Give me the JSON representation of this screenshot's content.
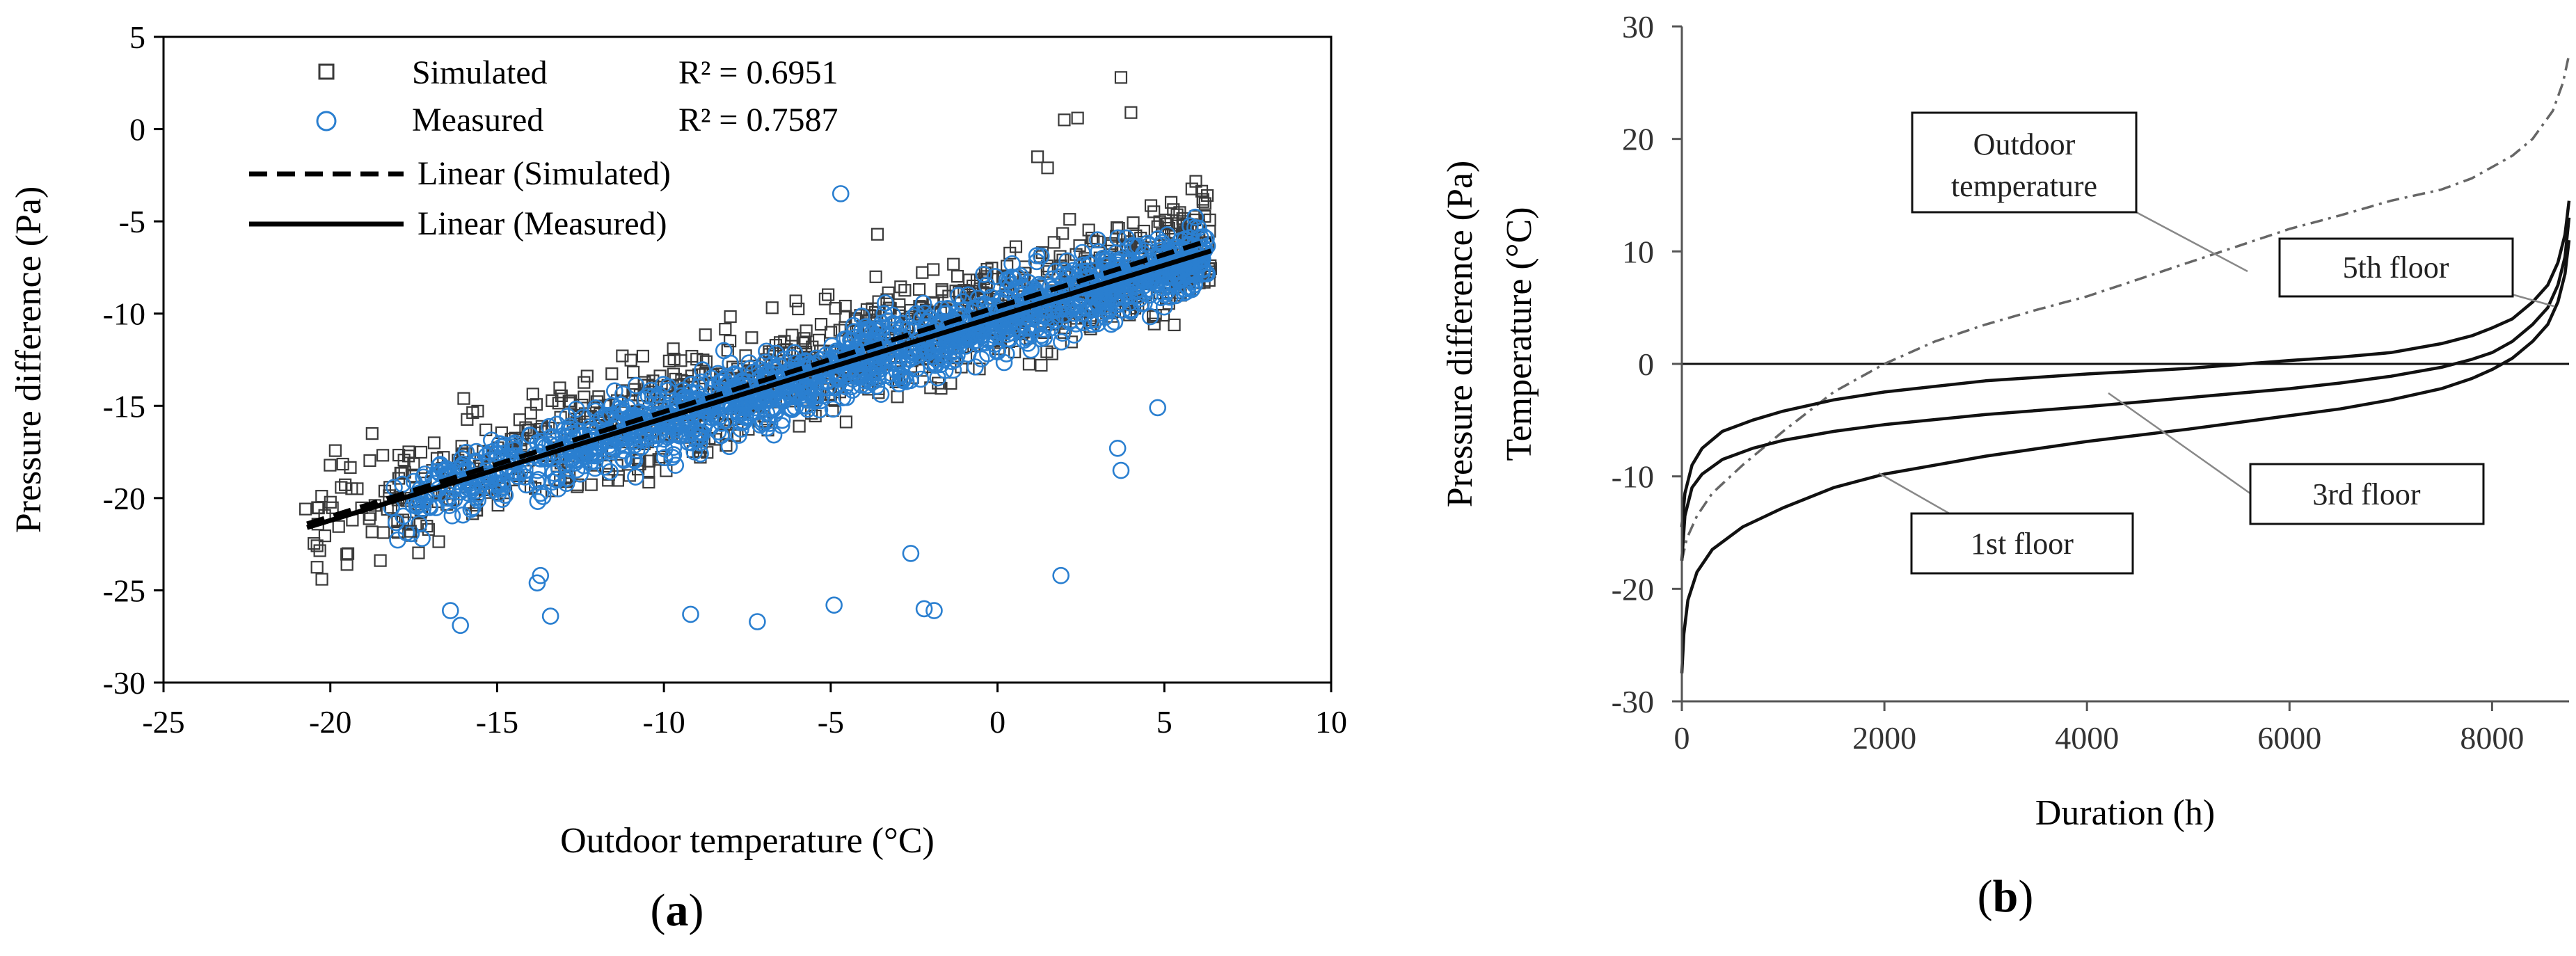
{
  "chart_data": [
    {
      "id": "a",
      "type": "scatter",
      "panel_label_open": "(",
      "panel_label_letter": "a",
      "panel_label_close": ")",
      "xlabel": "Outdoor temperature (°C)",
      "ylabel": "Pressure difference (Pa)",
      "xlim": [
        -25,
        10
      ],
      "ylim": [
        -30,
        5
      ],
      "xticks": [
        -25,
        -20,
        -15,
        -10,
        -5,
        0,
        5,
        10
      ],
      "yticks": [
        5,
        0,
        -5,
        -10,
        -15,
        -20,
        -25,
        -30
      ],
      "grid": false,
      "legend_position": "top-left",
      "series": [
        {
          "name": "Simulated",
          "marker": "square",
          "color": "#3a3a3a",
          "r2_label": "R² = 0.6951",
          "cloud": {
            "x_range": [
              -20.8,
              6.4
            ],
            "trend_slope": 0.565,
            "trend_intercept": -9.7,
            "spread": 2.2
          }
        },
        {
          "name": "Measured",
          "marker": "circle",
          "color": "#2a7fd0",
          "r2_label": "R² = 0.7587",
          "cloud": {
            "x_range": [
              -18.2,
              6.3
            ],
            "trend_slope": 0.555,
            "trend_intercept": -10.3,
            "spread": 1.4
          }
        }
      ],
      "trendlines": [
        {
          "name": "Linear (Simulated)",
          "style": "dashed",
          "x": [
            -20.7,
            6.4
          ],
          "y": [
            -21.4,
            -6.0
          ]
        },
        {
          "name": "Linear (Measured)",
          "style": "solid",
          "x": [
            -20.7,
            6.4
          ],
          "y": [
            -21.6,
            -6.6
          ]
        }
      ],
      "outliers": {
        "Simulated": [
          [
            3.7,
            2.8
          ],
          [
            4.0,
            0.9
          ],
          [
            2.0,
            0.5
          ],
          [
            2.4,
            0.6
          ],
          [
            1.2,
            -1.5
          ],
          [
            1.5,
            -2.1
          ],
          [
            -3.6,
            -5.7
          ],
          [
            -16.0,
            -14.6
          ],
          [
            -19.5,
            -23.6
          ],
          [
            -17.6,
            -21.8
          ]
        ],
        "Measured": [
          [
            -4.7,
            -3.5
          ],
          [
            -16.1,
            -26.9
          ],
          [
            -16.4,
            -26.1
          ],
          [
            -13.4,
            -26.4
          ],
          [
            -9.2,
            -26.3
          ],
          [
            -7.2,
            -26.7
          ],
          [
            -4.9,
            -25.8
          ],
          [
            -2.2,
            -26.0
          ],
          [
            -1.9,
            -26.1
          ],
          [
            -2.6,
            -23.0
          ],
          [
            1.9,
            -24.2
          ],
          [
            3.6,
            -17.3
          ],
          [
            3.7,
            -18.5
          ],
          [
            4.8,
            -15.1
          ],
          [
            -13.8,
            -24.6
          ],
          [
            -13.7,
            -24.2
          ]
        ]
      }
    },
    {
      "id": "b",
      "type": "line",
      "panel_label_open": "(",
      "panel_label_letter": "b",
      "panel_label_close": ")",
      "xlabel": "Duration (h)",
      "ylabel_line1": "Pressure difference (Pa)",
      "ylabel_line2": "Temperature (°C)",
      "xlim": [
        0,
        8760
      ],
      "ylim": [
        -30,
        30
      ],
      "xticks": [
        0,
        2000,
        4000,
        6000,
        8000
      ],
      "yticks": [
        30,
        20,
        10,
        0,
        -10,
        -20,
        -30
      ],
      "grid": false,
      "series": [
        {
          "name": "Outdoor temperature",
          "style": "dashdot",
          "color": "#666666",
          "x": [
            0,
            50,
            150,
            300,
            600,
            1000,
            1500,
            2000,
            2500,
            3000,
            3500,
            4000,
            4500,
            5000,
            5500,
            6000,
            6500,
            7000,
            7500,
            7800,
            8000,
            8200,
            8400,
            8600,
            8700,
            8760
          ],
          "y": [
            -17.5,
            -15.5,
            -13.5,
            -11.5,
            -9.0,
            -6.0,
            -2.5,
            0.0,
            2.0,
            3.5,
            4.8,
            6.0,
            7.5,
            9.0,
            10.5,
            12.0,
            13.2,
            14.5,
            15.5,
            16.5,
            17.5,
            18.5,
            20.0,
            22.5,
            25.0,
            27.5
          ]
        },
        {
          "name": "5th floor",
          "style": "solid",
          "color": "#111111",
          "x": [
            0,
            30,
            100,
            200,
            400,
            700,
            1000,
            1500,
            2000,
            3000,
            4000,
            5000,
            6000,
            6500,
            7000,
            7500,
            7800,
            8000,
            8200,
            8400,
            8550,
            8650,
            8720,
            8760
          ],
          "y": [
            -14.5,
            -11.5,
            -9.0,
            -7.5,
            -6.0,
            -5.0,
            -4.2,
            -3.2,
            -2.5,
            -1.5,
            -0.9,
            -0.4,
            0.3,
            0.6,
            1.0,
            1.8,
            2.5,
            3.2,
            4.0,
            5.5,
            7.0,
            9.0,
            11.5,
            14.5
          ]
        },
        {
          "name": "3rd floor",
          "style": "solid",
          "color": "#111111",
          "x": [
            0,
            30,
            100,
            200,
            400,
            700,
            1000,
            1500,
            2000,
            3000,
            4000,
            5000,
            6000,
            6500,
            7000,
            7500,
            7800,
            8000,
            8200,
            8400,
            8550,
            8650,
            8720,
            8760
          ],
          "y": [
            -17.5,
            -13.5,
            -11.0,
            -9.8,
            -8.5,
            -7.5,
            -6.8,
            -6.0,
            -5.4,
            -4.5,
            -3.8,
            -3.0,
            -2.2,
            -1.7,
            -1.1,
            -0.3,
            0.4,
            1.0,
            2.0,
            3.5,
            5.0,
            7.0,
            9.5,
            13.0
          ]
        },
        {
          "name": "1st floor",
          "style": "solid",
          "color": "#111111",
          "x": [
            0,
            20,
            60,
            150,
            300,
            600,
            1000,
            1500,
            2000,
            3000,
            4000,
            5000,
            6000,
            6500,
            7000,
            7500,
            7800,
            8000,
            8200,
            8400,
            8550,
            8650,
            8720,
            8760
          ],
          "y": [
            -27.5,
            -24.0,
            -21.0,
            -18.5,
            -16.5,
            -14.5,
            -12.8,
            -11.0,
            -9.8,
            -8.2,
            -6.9,
            -5.8,
            -4.6,
            -4.0,
            -3.2,
            -2.2,
            -1.3,
            -0.5,
            0.5,
            2.0,
            3.5,
            5.5,
            8.0,
            11.0
          ]
        }
      ],
      "annotations": [
        {
          "label_line1": "Outdoor",
          "label_line2": "temperature",
          "points_to": "Outdoor temperature"
        },
        {
          "label": "5th floor",
          "points_to": "5th floor"
        },
        {
          "label": "3rd floor",
          "points_to": "3rd floor"
        },
        {
          "label": "1st floor",
          "points_to": "1st floor"
        }
      ]
    }
  ]
}
